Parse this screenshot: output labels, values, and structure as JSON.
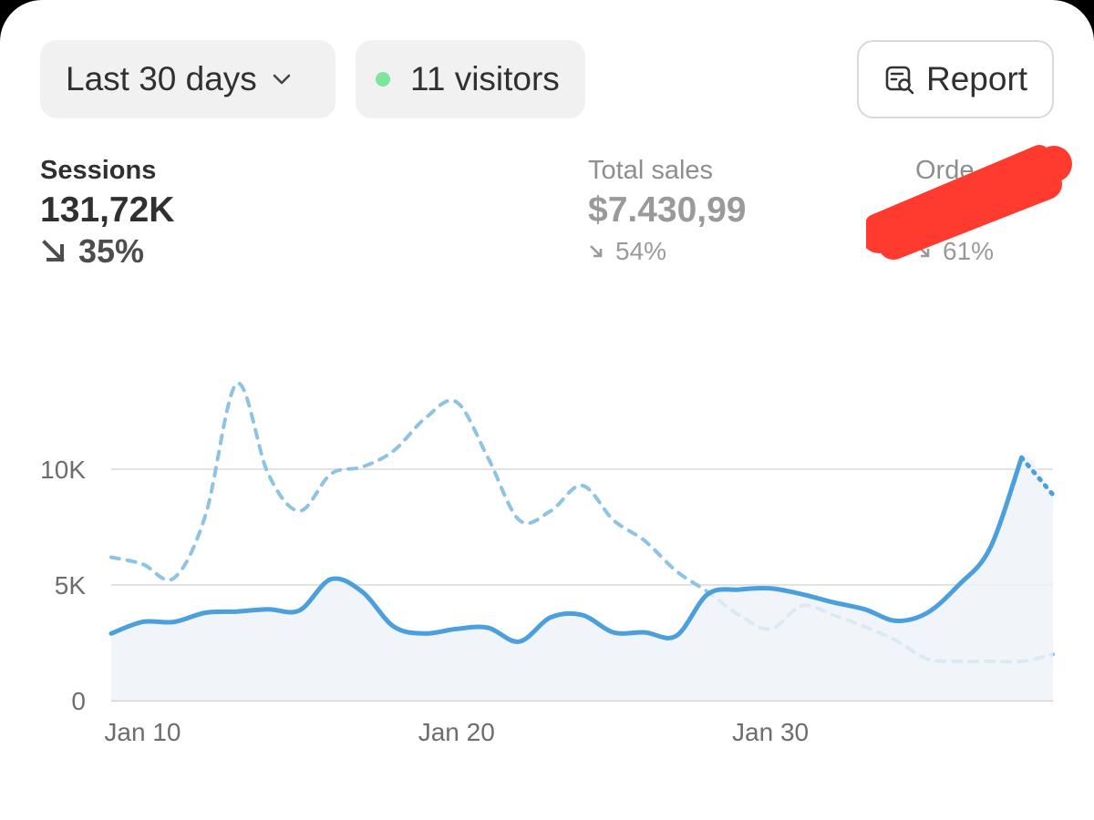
{
  "toolbar": {
    "date_range": "Last 30 days",
    "visitors": "11 visitors",
    "report_label": "Report",
    "icons": {
      "date_dropdown": "chevron-down-icon",
      "visitors_status": "live-dot-icon",
      "report": "report-search-icon"
    },
    "colors": {
      "live_dot": "#7ee69c"
    }
  },
  "metrics": [
    {
      "id": "sessions",
      "label": "Sessions",
      "value": "131,72K",
      "change": "35%",
      "direction": "down",
      "selected": true
    },
    {
      "id": "total_sales",
      "label": "Total sales",
      "value": "$7.430,99",
      "change": "54%",
      "direction": "down",
      "selected": false
    },
    {
      "id": "orders",
      "label": "Orde",
      "value": "",
      "change": "61%",
      "direction": "down",
      "selected": false,
      "redacted": true
    }
  ],
  "chart_data": {
    "type": "line",
    "x_unit": "date",
    "x": [
      "Jan 9",
      "Jan 10",
      "Jan 11",
      "Jan 12",
      "Jan 13",
      "Jan 14",
      "Jan 15",
      "Jan 16",
      "Jan 17",
      "Jan 18",
      "Jan 19",
      "Jan 20",
      "Jan 21",
      "Jan 22",
      "Jan 23",
      "Jan 24",
      "Jan 25",
      "Jan 26",
      "Jan 27",
      "Jan 28",
      "Jan 29",
      "Jan 30",
      "Jan 31",
      "Feb 1",
      "Feb 2",
      "Feb 3",
      "Feb 4",
      "Feb 5",
      "Feb 6",
      "Feb 7",
      "Feb 8"
    ],
    "x_tick_labels": [
      "Jan 10",
      "Jan 20",
      "Jan 30"
    ],
    "y_tick_labels": [
      "0",
      "5K",
      "10K"
    ],
    "ylim": [
      0,
      15000
    ],
    "grid": true,
    "series": [
      {
        "style": "solid",
        "color": "#4a9fdc",
        "values": [
          2900,
          3400,
          3400,
          3800,
          3850,
          3950,
          3900,
          5250,
          4700,
          3200,
          2900,
          3100,
          3150,
          2550,
          3600,
          3700,
          2950,
          2950,
          2800,
          4600,
          4800,
          4850,
          4600,
          4250,
          3950,
          3450,
          3800,
          5000,
          6600,
          10500,
          8900
        ],
        "last_point_partial": true
      },
      {
        "style": "dashed",
        "color": "#8fc3e4",
        "values": [
          6200,
          5900,
          5300,
          8000,
          13700,
          9800,
          8200,
          9800,
          10100,
          10800,
          12200,
          12900,
          10500,
          7800,
          8200,
          9300,
          7800,
          6900,
          5600,
          4700,
          3700,
          3100,
          4100,
          3700,
          3200,
          2600,
          1800,
          1700,
          1700,
          1700,
          2000
        ]
      }
    ]
  }
}
